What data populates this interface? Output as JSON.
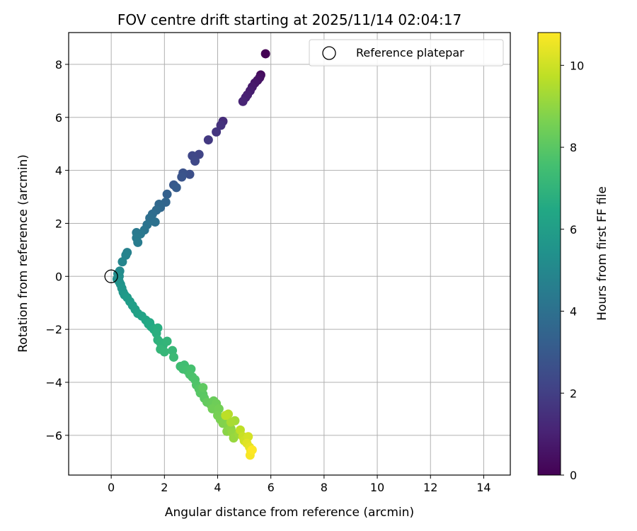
{
  "chart_data": {
    "type": "scatter",
    "title": "FOV centre drift starting at 2025/11/14 02:04:17",
    "xlabel": "Angular distance from reference (arcmin)",
    "ylabel": "Rotation from reference (arcmin)",
    "xlim": [
      -1.6,
      15.0
    ],
    "ylim": [
      -7.5,
      9.2
    ],
    "xticks": [
      "0",
      "2",
      "4",
      "6",
      "8",
      "10",
      "12",
      "14"
    ],
    "yticks": [
      "−6",
      "−4",
      "−2",
      "0",
      "2",
      "4",
      "6",
      "8"
    ],
    "grid": true,
    "legend": {
      "position": "top-right",
      "entries": [
        "Reference platepar"
      ]
    },
    "reference_point": {
      "x": 0.0,
      "y": 0.0
    },
    "colorbar": {
      "label": "Hours from first FF file",
      "colormap": "viridis",
      "range": [
        0,
        10.8
      ],
      "ticks": [
        "0",
        "2",
        "4",
        "6",
        "8",
        "10"
      ]
    },
    "series": [
      {
        "color_by": "hours",
        "points": [
          [
            5.8,
            8.4,
            0.0
          ],
          [
            5.62,
            7.6,
            0.3
          ],
          [
            5.58,
            7.5,
            0.45
          ],
          [
            5.5,
            7.4,
            0.55
          ],
          [
            5.4,
            7.3,
            0.65
          ],
          [
            5.3,
            7.15,
            0.75
          ],
          [
            5.22,
            7.0,
            0.85
          ],
          [
            5.12,
            6.85,
            0.95
          ],
          [
            5.05,
            6.75,
            1.0
          ],
          [
            4.95,
            6.6,
            1.1
          ],
          [
            4.2,
            5.85,
            1.4
          ],
          [
            4.12,
            5.7,
            1.55
          ],
          [
            3.95,
            5.45,
            1.65
          ],
          [
            3.65,
            5.15,
            1.8
          ],
          [
            3.3,
            4.6,
            2.2
          ],
          [
            3.05,
            4.55,
            2.3
          ],
          [
            3.15,
            4.35,
            2.35
          ],
          [
            2.95,
            3.85,
            2.6
          ],
          [
            2.7,
            3.9,
            2.7
          ],
          [
            2.65,
            3.75,
            2.8
          ],
          [
            2.35,
            3.45,
            3.0
          ],
          [
            2.45,
            3.35,
            3.1
          ],
          [
            2.1,
            3.1,
            3.3
          ],
          [
            2.05,
            2.8,
            3.5
          ],
          [
            1.85,
            2.6,
            3.6
          ],
          [
            1.8,
            2.72,
            3.65
          ],
          [
            1.7,
            2.5,
            3.75
          ],
          [
            1.55,
            2.35,
            3.85
          ],
          [
            1.45,
            2.2,
            3.95
          ],
          [
            1.65,
            2.05,
            4.0
          ],
          [
            1.35,
            1.95,
            4.1
          ],
          [
            1.25,
            1.75,
            4.2
          ],
          [
            1.1,
            1.6,
            4.3
          ],
          [
            0.95,
            1.65,
            4.35
          ],
          [
            0.95,
            1.45,
            4.45
          ],
          [
            1.0,
            1.28,
            4.5
          ],
          [
            0.6,
            0.9,
            4.7
          ],
          [
            0.55,
            0.8,
            4.8
          ],
          [
            0.42,
            0.55,
            4.9
          ],
          [
            0.32,
            0.2,
            5.1
          ],
          [
            0.25,
            0.1,
            5.2
          ],
          [
            0.3,
            0.0,
            5.25
          ],
          [
            0.22,
            -0.1,
            5.3
          ],
          [
            0.3,
            -0.2,
            5.4
          ],
          [
            0.35,
            -0.3,
            5.5
          ],
          [
            0.4,
            -0.45,
            5.6
          ],
          [
            0.45,
            -0.6,
            5.65
          ],
          [
            0.5,
            -0.7,
            5.75
          ],
          [
            0.6,
            -0.8,
            5.85
          ],
          [
            0.7,
            -0.95,
            5.9
          ],
          [
            0.8,
            -1.1,
            6.0
          ],
          [
            0.9,
            -1.25,
            6.05
          ],
          [
            1.0,
            -1.4,
            6.15
          ],
          [
            1.15,
            -1.5,
            6.2
          ],
          [
            1.3,
            -1.65,
            6.35
          ],
          [
            1.4,
            -1.8,
            6.45
          ],
          [
            1.5,
            -1.9,
            6.55
          ],
          [
            1.45,
            -1.75,
            6.5
          ],
          [
            1.6,
            -2.0,
            6.6
          ],
          [
            1.75,
            -1.95,
            6.7
          ],
          [
            1.7,
            -2.15,
            6.75
          ],
          [
            1.75,
            -2.4,
            6.85
          ],
          [
            1.85,
            -2.5,
            6.95
          ],
          [
            1.95,
            -2.6,
            7.0
          ],
          [
            2.1,
            -2.45,
            7.05
          ],
          [
            1.85,
            -2.75,
            7.1
          ],
          [
            2.0,
            -2.85,
            7.15
          ],
          [
            2.3,
            -2.8,
            7.2
          ],
          [
            2.35,
            -3.05,
            7.3
          ],
          [
            2.6,
            -3.4,
            7.4
          ],
          [
            2.75,
            -3.35,
            7.45
          ],
          [
            2.7,
            -3.5,
            7.5
          ],
          [
            2.85,
            -3.55,
            7.55
          ],
          [
            3.0,
            -3.5,
            7.6
          ],
          [
            2.95,
            -3.7,
            7.65
          ],
          [
            3.05,
            -3.8,
            7.7
          ],
          [
            3.15,
            -3.9,
            7.75
          ],
          [
            3.2,
            -4.1,
            7.8
          ],
          [
            3.3,
            -4.25,
            7.9
          ],
          [
            3.35,
            -4.4,
            7.95
          ],
          [
            3.45,
            -4.45,
            8.0
          ],
          [
            3.5,
            -4.6,
            8.05
          ],
          [
            3.45,
            -4.2,
            8.1
          ],
          [
            3.6,
            -4.75,
            8.2
          ],
          [
            3.75,
            -4.85,
            8.25
          ],
          [
            3.85,
            -4.7,
            8.3
          ],
          [
            3.95,
            -4.8,
            8.4
          ],
          [
            3.8,
            -5.0,
            8.45
          ],
          [
            4.05,
            -5.0,
            8.5
          ],
          [
            4.0,
            -5.25,
            8.55
          ],
          [
            4.1,
            -5.4,
            8.6
          ],
          [
            4.3,
            -5.3,
            8.7
          ],
          [
            4.2,
            -5.55,
            8.75
          ],
          [
            4.4,
            -5.6,
            8.8
          ],
          [
            4.35,
            -5.85,
            8.9
          ],
          [
            4.5,
            -5.75,
            8.95
          ],
          [
            4.55,
            -5.9,
            9.05
          ],
          [
            4.6,
            -6.1,
            9.1
          ],
          [
            4.8,
            -5.95,
            9.2
          ],
          [
            4.65,
            -5.45,
            9.3
          ],
          [
            4.5,
            -5.5,
            9.4
          ],
          [
            4.4,
            -5.2,
            9.6
          ],
          [
            4.3,
            -5.25,
            9.7
          ],
          [
            4.85,
            -5.8,
            9.75
          ],
          [
            4.95,
            -6.05,
            9.9
          ],
          [
            5.0,
            -6.2,
            10.0
          ],
          [
            5.15,
            -6.05,
            10.1
          ],
          [
            5.1,
            -6.3,
            10.3
          ],
          [
            5.2,
            -6.45,
            10.4
          ],
          [
            5.25,
            -6.6,
            10.6
          ],
          [
            5.22,
            -6.75,
            10.7
          ],
          [
            5.3,
            -6.55,
            10.8
          ]
        ]
      }
    ]
  }
}
